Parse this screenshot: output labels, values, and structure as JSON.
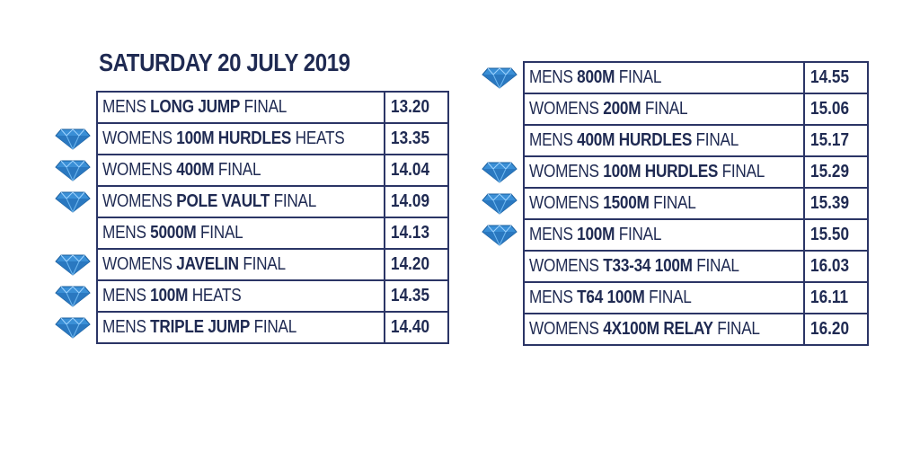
{
  "title": "SATURDAY 20 JULY 2019",
  "colors": {
    "text": "#1f2a52",
    "border": "#2b3566",
    "diamond": "#3a8fd6"
  },
  "diamond_icon": "diamond-icon",
  "left_table": [
    {
      "pre": "MENS ",
      "bold": "LONG JUMP",
      "post": " FINAL",
      "time": "13.20",
      "diamond": false
    },
    {
      "pre": "WOMENS ",
      "bold": "100M HURDLES",
      "post": " HEATS",
      "time": "13.35",
      "diamond": true
    },
    {
      "pre": "WOMENS ",
      "bold": "400M",
      "post": " FINAL",
      "time": "14.04",
      "diamond": true
    },
    {
      "pre": "WOMENS ",
      "bold": "POLE VAULT",
      "post": " FINAL",
      "time": "14.09",
      "diamond": true
    },
    {
      "pre": "MENS ",
      "bold": "5000M",
      "post": " FINAL",
      "time": "14.13",
      "diamond": false
    },
    {
      "pre": "WOMENS ",
      "bold": "JAVELIN",
      "post": " FINAL",
      "time": "14.20",
      "diamond": true
    },
    {
      "pre": "MENS ",
      "bold": "100M",
      "post": " HEATS",
      "time": "14.35",
      "diamond": true
    },
    {
      "pre": "MENS ",
      "bold": "TRIPLE JUMP",
      "post": " FINAL",
      "time": "14.40",
      "diamond": true
    }
  ],
  "right_table": [
    {
      "pre": "MENS ",
      "bold": "800M",
      "post": " FINAL",
      "time": "14.55",
      "diamond": true
    },
    {
      "pre": "WOMENS ",
      "bold": "200M",
      "post": " FINAL",
      "time": "15.06",
      "diamond": false
    },
    {
      "pre": "MENS ",
      "bold": "400M HURDLES",
      "post": " FINAL",
      "time": "15.17",
      "diamond": false
    },
    {
      "pre": "WOMENS ",
      "bold": "100M HURDLES",
      "post": " FINAL",
      "time": "15.29",
      "diamond": true
    },
    {
      "pre": "WOMENS ",
      "bold": "1500M",
      "post": " FINAL",
      "time": "15.39",
      "diamond": true
    },
    {
      "pre": "MENS ",
      "bold": "100M",
      "post": " FINAL",
      "time": "15.50",
      "diamond": true
    },
    {
      "pre": "WOMENS ",
      "bold": "T33-34 100M",
      "post": " FINAL",
      "time": "16.03",
      "diamond": false
    },
    {
      "pre": "MENS ",
      "bold": "T64 100M",
      "post": " FINAL",
      "time": "16.11",
      "diamond": false
    },
    {
      "pre": "WOMENS ",
      "bold": "4X100M RELAY",
      "post": " FINAL",
      "time": "16.20",
      "diamond": false
    }
  ]
}
